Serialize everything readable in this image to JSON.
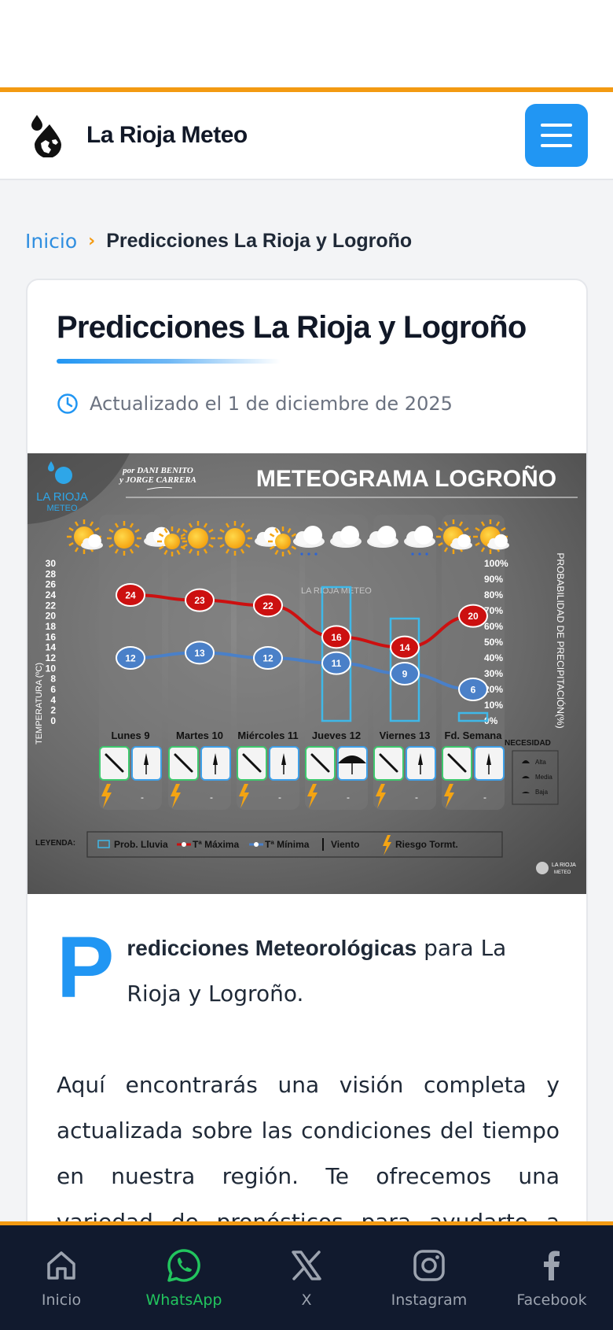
{
  "header": {
    "site_name": "La Rioja Meteo",
    "logo_icon": "drop-globe-logo",
    "menu_icon": "hamburger-icon",
    "accent_color": "#2196f3",
    "top_border_color": "#f39a12"
  },
  "breadcrumb": {
    "home": "Inicio",
    "separator": "›",
    "current": "Predicciones La Rioja y Logroño"
  },
  "article": {
    "title": "Predicciones La Rioja y Logroño",
    "updated": "Actualizado el 1 de diciembre de 2025",
    "dropcap": "P",
    "lead_bold": "redicciones Meteorológicas",
    "lead_rest": " para La Rioja y Logroño.",
    "paragraph": "Aquí encontrarás una visión completa y actualizada sobre las condiciones del tiempo en nuestra región. Te ofrecemos una variedad de pronósticos para ayudarte a planificar tus"
  },
  "meteogram": {
    "brand_line1": "LA RIOJA",
    "brand_line2": "METEO",
    "authors_line1": "por DANI BENITO",
    "authors_line2": "y JORGE CARRERA",
    "title": "METEOGRAMA LOGROÑO",
    "watermark": "LA RIOJA METEO",
    "left_axis_label": "TEMPERATURA (ºC)",
    "right_axis_label": "PROBABILIDAD DE PRECIPITACIÓN(%)",
    "temp_ticks": [
      "30",
      "28",
      "26",
      "24",
      "22",
      "20",
      "18",
      "16",
      "14",
      "12",
      "10",
      "8",
      "6",
      "4",
      "2",
      "0"
    ],
    "pct_ticks": [
      "100%",
      "90%",
      "80%",
      "70%",
      "60%",
      "50%",
      "40%",
      "30%",
      "20%",
      "10%",
      "0%"
    ],
    "days": [
      "Lunes 9",
      "Martes 10",
      "Miércoles 11",
      "Jueves 12",
      "Viernes 13",
      "Fd. Semana"
    ],
    "max_temps": [
      24,
      23,
      22,
      16,
      14,
      20
    ],
    "min_temps": [
      12,
      13,
      12,
      11,
      9,
      6
    ],
    "rain_prob": [
      0,
      0,
      0,
      85,
      65,
      5
    ],
    "storm_values": [
      "-",
      "-",
      "-",
      "-",
      "-",
      "-"
    ],
    "necesidad_title": "NECESIDAD",
    "necesidad_items": [
      "Alta",
      "Media",
      "Baja"
    ],
    "legend_label": "LEYENDA:",
    "legend_items": [
      "Prob. Lluvia",
      "Tª Máxima",
      "Tª Mínima",
      "Viento",
      "Riesgo Tormt."
    ],
    "max_color": "#cc1010",
    "min_color": "#4a80c8",
    "rain_color": "#3fb8e8"
  },
  "bottom_nav": {
    "items": [
      {
        "label": "Inicio",
        "icon": "home-icon"
      },
      {
        "label": "WhatsApp",
        "icon": "whatsapp-icon"
      },
      {
        "label": "X",
        "icon": "x-logo-icon"
      },
      {
        "label": "Instagram",
        "icon": "instagram-icon"
      },
      {
        "label": "Facebook",
        "icon": "facebook-icon"
      }
    ],
    "active_color": "#22c55e"
  }
}
